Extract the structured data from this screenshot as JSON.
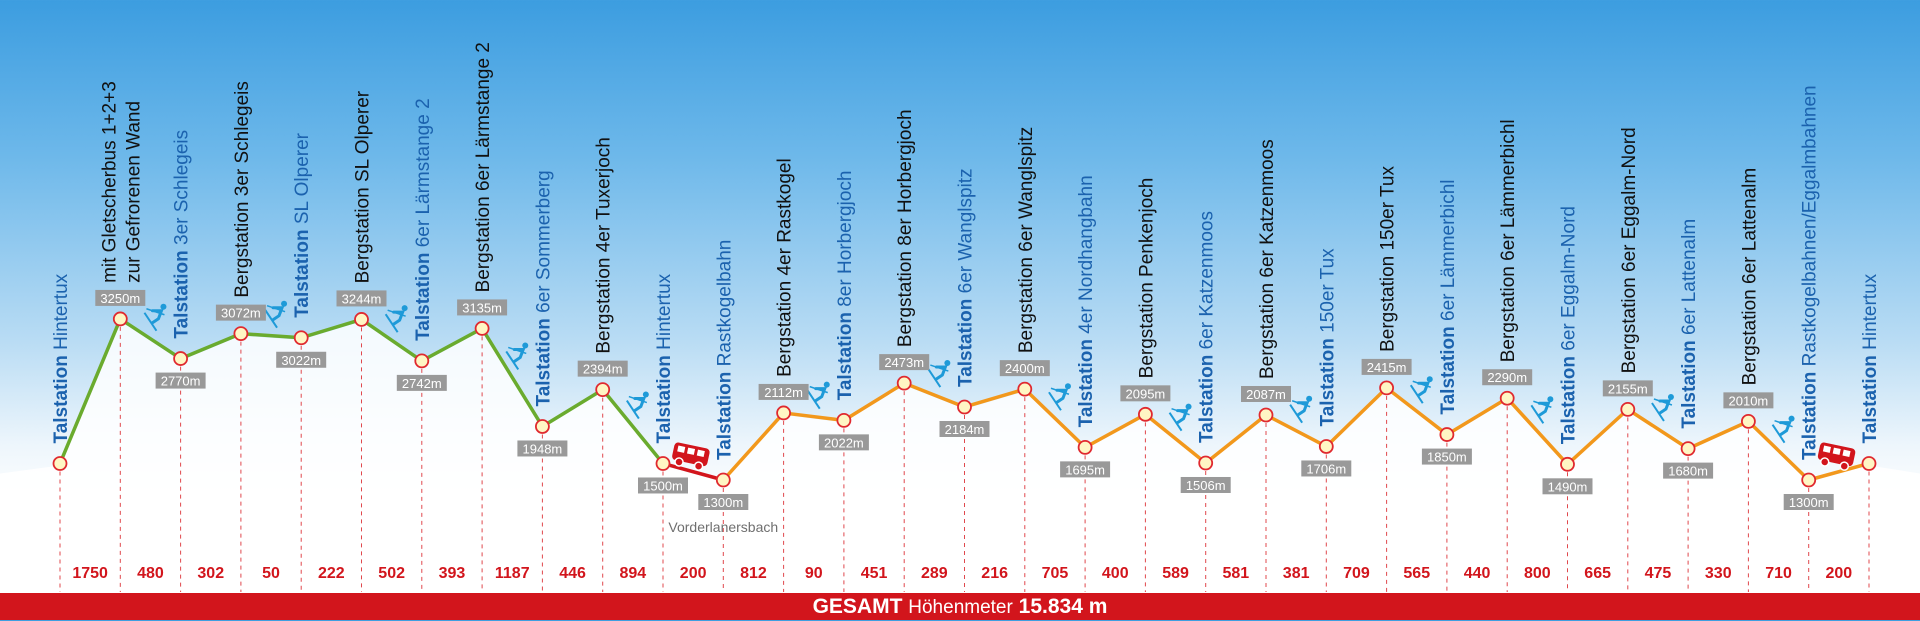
{
  "colors": {
    "glacier_line": "#6aab2e",
    "zillertal_line": "#f2981c",
    "bus_line": "#d2151c",
    "talstation_text": "#1b62ae",
    "bergstation_text": "#111111",
    "elevation_box": "#999999",
    "vertical_meter_text": "#d2151c",
    "total_bar": "#d2151c",
    "icon_blue": "#1e9ad8"
  },
  "stations": [
    {
      "lines": [
        "Talstation Hintertux"
      ],
      "kind": "tal",
      "elevation": 1500,
      "elevation_label": null
    },
    {
      "lines": [
        "mit Gletscherbus 1+2+3",
        "zur Gefrorenen Wand"
      ],
      "kind": "berg",
      "elevation": 3250,
      "elevation_label": "3250m"
    },
    {
      "lines": [
        "Talstation 3er Schlegeis"
      ],
      "kind": "tal",
      "elevation": 2770,
      "elevation_label": "2770m"
    },
    {
      "lines": [
        "Bergstation 3er Schlegeis"
      ],
      "kind": "berg",
      "elevation": 3072,
      "elevation_label": "3072m"
    },
    {
      "lines": [
        "Talstation SL Olperer"
      ],
      "kind": "tal",
      "elevation": 3022,
      "elevation_label": "3022m"
    },
    {
      "lines": [
        "Bergstation SL Olperer"
      ],
      "kind": "berg",
      "elevation": 3244,
      "elevation_label": "3244m"
    },
    {
      "lines": [
        "Talstation 6er Lärmstange 2"
      ],
      "kind": "tal",
      "elevation": 2742,
      "elevation_label": "2742m"
    },
    {
      "lines": [
        "Bergstation 6er Lärmstange 2"
      ],
      "kind": "berg",
      "elevation": 3135,
      "elevation_label": "3135m"
    },
    {
      "lines": [
        "Talstation 6er Sommerberg"
      ],
      "kind": "tal",
      "elevation": 1948,
      "elevation_label": "1948m"
    },
    {
      "lines": [
        "Bergstation 4er Tuxerjoch"
      ],
      "kind": "berg",
      "elevation": 2394,
      "elevation_label": "2394m"
    },
    {
      "lines": [
        "Talstation Hintertux"
      ],
      "kind": "tal",
      "elevation": 1500,
      "elevation_label": "1500m"
    },
    {
      "lines": [
        "Talstation Rastkogelbahn"
      ],
      "kind": "tal",
      "elevation": 1300,
      "elevation_label": "1300m",
      "place": "Vorderlanersbach"
    },
    {
      "lines": [
        "Bergstation 4er Rastkogel"
      ],
      "kind": "berg",
      "elevation": 2112,
      "elevation_label": "2112m"
    },
    {
      "lines": [
        "Talstation 8er Horbergjoch"
      ],
      "kind": "tal",
      "elevation": 2022,
      "elevation_label": "2022m"
    },
    {
      "lines": [
        "Bergstation 8er Horbergjoch"
      ],
      "kind": "berg",
      "elevation": 2473,
      "elevation_label": "2473m"
    },
    {
      "lines": [
        "Talstation 6er Wanglspitz"
      ],
      "kind": "tal",
      "elevation": 2184,
      "elevation_label": "2184m"
    },
    {
      "lines": [
        "Bergstation 6er Wanglspitz"
      ],
      "kind": "berg",
      "elevation": 2400,
      "elevation_label": "2400m"
    },
    {
      "lines": [
        "Talstation 4er Nordhangbahn"
      ],
      "kind": "tal",
      "elevation": 1695,
      "elevation_label": "1695m"
    },
    {
      "lines": [
        "Bergstation Penkenjoch"
      ],
      "kind": "berg",
      "elevation": 2095,
      "elevation_label": "2095m"
    },
    {
      "lines": [
        "Talstation 6er Katzenmoos"
      ],
      "kind": "tal",
      "elevation": 1506,
      "elevation_label": "1506m"
    },
    {
      "lines": [
        "Bergstation 6er Katzenmoos"
      ],
      "kind": "berg",
      "elevation": 2087,
      "elevation_label": "2087m"
    },
    {
      "lines": [
        "Talstation 150er Tux"
      ],
      "kind": "tal",
      "elevation": 1706,
      "elevation_label": "1706m"
    },
    {
      "lines": [
        "Bergstation 150er Tux"
      ],
      "kind": "berg",
      "elevation": 2415,
      "elevation_label": "2415m"
    },
    {
      "lines": [
        "Talstation 6er Lämmerbichl"
      ],
      "kind": "tal",
      "elevation": 1850,
      "elevation_label": "1850m"
    },
    {
      "lines": [
        "Bergstation 6er Lämmerbichl"
      ],
      "kind": "berg",
      "elevation": 2290,
      "elevation_label": "2290m"
    },
    {
      "lines": [
        "Talstation 6er Eggalm-Nord"
      ],
      "kind": "tal",
      "elevation": 1490,
      "elevation_label": "1490m"
    },
    {
      "lines": [
        "Bergstation 6er Eggalm-Nord"
      ],
      "kind": "berg",
      "elevation": 2155,
      "elevation_label": "2155m"
    },
    {
      "lines": [
        "Talstation 6er Lattenalm"
      ],
      "kind": "tal",
      "elevation": 1680,
      "elevation_label": "1680m"
    },
    {
      "lines": [
        "Bergstation 6er Lattenalm"
      ],
      "kind": "berg",
      "elevation": 2010,
      "elevation_label": "2010m"
    },
    {
      "lines": [
        "Talstation Rastkogelbahnen/Eggalmbahnen"
      ],
      "kind": "tal",
      "elevation": 1300,
      "elevation_label": "1300m"
    },
    {
      "lines": [
        "Talstation Hintertux"
      ],
      "kind": "tal",
      "elevation": 1500,
      "elevation_label": null
    }
  ],
  "segments": [
    {
      "meters": "1750",
      "line": "glacier",
      "icon": null
    },
    {
      "meters": "480",
      "line": "glacier",
      "icon": "skier-icon"
    },
    {
      "meters": "302",
      "line": "glacier",
      "icon": null
    },
    {
      "meters": "50",
      "line": "glacier",
      "icon": "skier-icon"
    },
    {
      "meters": "222",
      "line": "glacier",
      "icon": null
    },
    {
      "meters": "502",
      "line": "glacier",
      "icon": "skier-icon"
    },
    {
      "meters": "393",
      "line": "glacier",
      "icon": null
    },
    {
      "meters": "1187",
      "line": "glacier",
      "icon": "skier-icon"
    },
    {
      "meters": "446",
      "line": "glacier",
      "icon": null
    },
    {
      "meters": "894",
      "line": "glacier",
      "icon": "skier-icon"
    },
    {
      "meters": "200",
      "line": "bus",
      "icon": "bus-icon"
    },
    {
      "meters": "812",
      "line": "zillertal",
      "icon": null
    },
    {
      "meters": "90",
      "line": "zillertal",
      "icon": "skier-icon"
    },
    {
      "meters": "451",
      "line": "zillertal",
      "icon": null
    },
    {
      "meters": "289",
      "line": "zillertal",
      "icon": "skier-icon"
    },
    {
      "meters": "216",
      "line": "zillertal",
      "icon": null
    },
    {
      "meters": "705",
      "line": "zillertal",
      "icon": "skier-icon"
    },
    {
      "meters": "400",
      "line": "zillertal",
      "icon": null
    },
    {
      "meters": "589",
      "line": "zillertal",
      "icon": "skier-icon"
    },
    {
      "meters": "581",
      "line": "zillertal",
      "icon": null
    },
    {
      "meters": "381",
      "line": "zillertal",
      "icon": "skier-icon"
    },
    {
      "meters": "709",
      "line": "zillertal",
      "icon": null
    },
    {
      "meters": "565",
      "line": "zillertal",
      "icon": "skier-icon"
    },
    {
      "meters": "440",
      "line": "zillertal",
      "icon": null
    },
    {
      "meters": "800",
      "line": "zillertal",
      "icon": "skier-icon"
    },
    {
      "meters": "665",
      "line": "zillertal",
      "icon": null
    },
    {
      "meters": "475",
      "line": "zillertal",
      "icon": "skier-icon"
    },
    {
      "meters": "330",
      "line": "zillertal",
      "icon": null
    },
    {
      "meters": "710",
      "line": "zillertal",
      "icon": "skier-icon"
    },
    {
      "meters": "200",
      "line": "zillertal",
      "icon": "bus-icon"
    }
  ],
  "total": {
    "label_bold": "GESAMT",
    "label": "Höhenmeter",
    "value": "15.834 m"
  }
}
